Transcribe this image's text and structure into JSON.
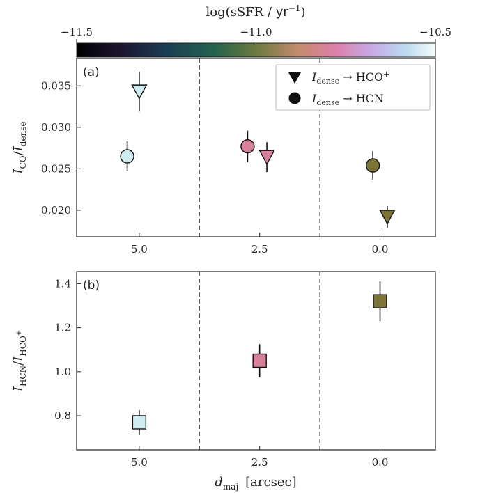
{
  "colorbar": {
    "label_main": "log(sSFR",
    "label_sep": " / ",
    "label_unit": "yr",
    "label_exp": "−1",
    "label_close": ")",
    "ticks": [
      -11.5,
      -11.0,
      -10.5
    ],
    "tick_labels": [
      "−11.5",
      "−11.0",
      "−10.5"
    ],
    "range": [
      -11.5,
      -10.5
    ]
  },
  "chart_data": [
    {
      "type": "scatter",
      "panel_label": "(a)",
      "ylabel": {
        "base": "I",
        "sub1": "CO",
        "sep": "/",
        "base2": "I",
        "sub2": "dense"
      },
      "xlim": [
        6.3,
        -1.15
      ],
      "ylim": [
        0.0168,
        0.0383
      ],
      "xticks": [
        5.0,
        2.5,
        0.0
      ],
      "xtick_labels": [
        "5.0",
        "2.5",
        "0.0"
      ],
      "yticks": [
        0.02,
        0.025,
        0.03,
        0.035
      ],
      "ytick_labels": [
        "0.020",
        "0.025",
        "0.030",
        "0.035"
      ],
      "dividers_x": [
        3.75,
        1.25
      ],
      "legend": {
        "placement": "top-right",
        "entries": [
          {
            "marker": "triangle-down",
            "base": "I",
            "sub": "dense",
            "arrow": "→",
            "target": "HCO",
            "sup": "+"
          },
          {
            "marker": "circle",
            "base": "I",
            "sub": "dense",
            "arrow": "→",
            "target": "HCN",
            "sup": ""
          }
        ]
      },
      "series": [
        {
          "marker": "circle",
          "points": [
            {
              "x": 5.25,
              "y": 0.0265,
              "yerr": 0.0018,
              "color": "#cfecf0"
            },
            {
              "x": 2.75,
              "y": 0.0277,
              "yerr": 0.0019,
              "color": "#d8819b"
            },
            {
              "x": 0.15,
              "y": 0.0254,
              "yerr": 0.0017,
              "color": "#7d7436"
            }
          ]
        },
        {
          "marker": "triangle-down",
          "points": [
            {
              "x": 5.0,
              "y": 0.0343,
              "yerr": 0.0024,
              "color": "#cfecf0"
            },
            {
              "x": 2.35,
              "y": 0.0264,
              "yerr": 0.0018,
              "color": "#d8819b"
            },
            {
              "x": -0.15,
              "y": 0.0192,
              "yerr": 0.0013,
              "color": "#7d7436"
            }
          ]
        }
      ]
    },
    {
      "type": "scatter",
      "panel_label": "(b)",
      "ylabel": {
        "base": "I",
        "sub1": "HCN",
        "sep": "/",
        "base2": "I",
        "sub2": "HCO",
        "sup2": "+"
      },
      "xlabel": {
        "base": "d",
        "sub": "maj",
        "unit": "[arcsec]"
      },
      "xlim": [
        6.3,
        -1.15
      ],
      "ylim": [
        0.645,
        1.455
      ],
      "xticks": [
        5.0,
        2.5,
        0.0
      ],
      "xtick_labels": [
        "5.0",
        "2.5",
        "0.0"
      ],
      "yticks": [
        0.8,
        1.0,
        1.2,
        1.4
      ],
      "ytick_labels": [
        "0.8",
        "1.0",
        "1.2",
        "1.4"
      ],
      "dividers_x": [
        3.75,
        1.25
      ],
      "series": [
        {
          "marker": "square",
          "points": [
            {
              "x": 5.0,
              "y": 0.77,
              "yerr": 0.055,
              "color": "#cfecf0"
            },
            {
              "x": 2.5,
              "y": 1.05,
              "yerr": 0.075,
              "color": "#d8819b"
            },
            {
              "x": 0.0,
              "y": 1.32,
              "yerr": 0.09,
              "color": "#7d7436"
            }
          ]
        }
      ]
    }
  ]
}
